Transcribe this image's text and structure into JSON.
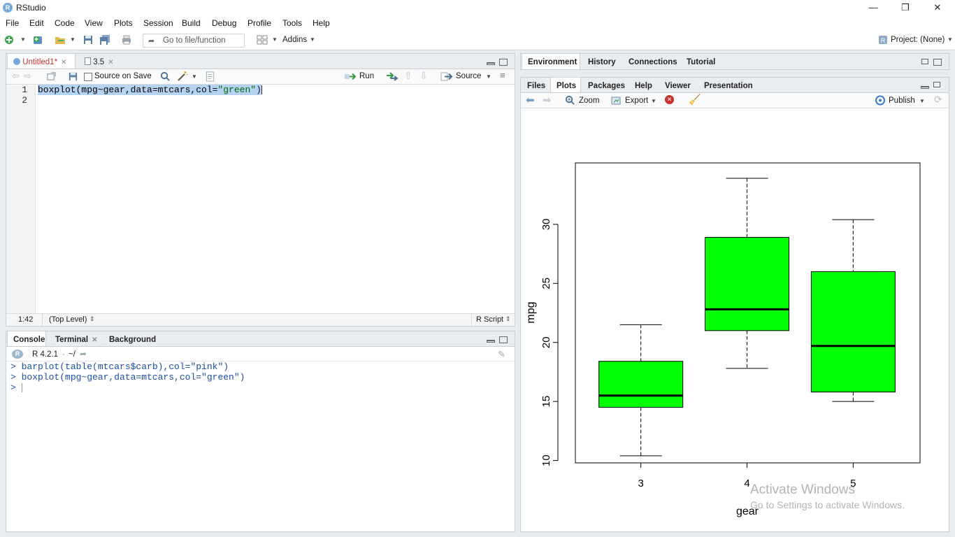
{
  "window": {
    "title": "RStudio",
    "controls": [
      "—",
      "❐",
      "✕"
    ]
  },
  "menu": [
    "File",
    "Edit",
    "Code",
    "View",
    "Plots",
    "Session",
    "Build",
    "Debug",
    "Profile",
    "Tools",
    "Help"
  ],
  "toolbar": {
    "goto_placeholder": "Go to file/function",
    "addins_label": "Addins",
    "project_label": "Project: (None)"
  },
  "editor": {
    "tabs": [
      {
        "label": "Untitled1*",
        "active": true
      },
      {
        "label": "3.5",
        "active": false
      }
    ],
    "source_on_save": "Source on Save",
    "run_label": "Run",
    "source_label": "Source",
    "lines": [
      {
        "n": "1",
        "code_fn": "boxplot(mpg~gear,data=mtcars,col=",
        "code_str": "\"green\"",
        "code_end": ")"
      },
      {
        "n": "2",
        "code_fn": "",
        "code_str": "",
        "code_end": ""
      }
    ],
    "status_position": "1:42",
    "status_scope": "(Top Level)",
    "status_type": "R Script"
  },
  "console": {
    "tabs": [
      {
        "label": "Console",
        "active": true
      },
      {
        "label": "Terminal",
        "active": false
      },
      {
        "label": "Background Jobs",
        "active": false
      }
    ],
    "r_version": "R 4.2.1",
    "path": "~/",
    "lines": [
      "> barplot(table(mtcars$carb),col=\"pink\")",
      "> boxplot(mpg~gear,data=mtcars,col=\"green\")",
      "> "
    ]
  },
  "env_pane": {
    "tabs": [
      "Environment",
      "History",
      "Connections",
      "Tutorial"
    ]
  },
  "files_pane": {
    "tabs": [
      {
        "label": "Files",
        "active": false
      },
      {
        "label": "Plots",
        "active": true
      },
      {
        "label": "Packages",
        "active": false
      },
      {
        "label": "Help",
        "active": false
      },
      {
        "label": "Viewer",
        "active": false
      },
      {
        "label": "Presentation",
        "active": false
      }
    ],
    "zoom_label": "Zoom",
    "export_label": "Export",
    "publish_label": "Publish"
  },
  "chart_data": {
    "type": "boxplot",
    "categories": [
      "3",
      "4",
      "5"
    ],
    "fill_color": "#00ff00",
    "xlabel": "gear",
    "ylabel": "mpg",
    "yticks": [
      "10",
      "15",
      "20",
      "25",
      "30"
    ],
    "ylim": [
      9.8,
      35.2
    ],
    "boxes": [
      {
        "category": "3",
        "min": 10.4,
        "q1": 14.5,
        "median": 15.5,
        "q3": 18.4,
        "max": 21.5
      },
      {
        "category": "4",
        "min": 17.8,
        "q1": 21.0,
        "median": 22.8,
        "q3": 28.9,
        "max": 33.9
      },
      {
        "category": "5",
        "min": 15.0,
        "q1": 15.8,
        "median": 19.7,
        "q3": 26.0,
        "max": 30.4
      }
    ]
  },
  "watermark": {
    "line1": "Activate Windows",
    "line2": "Go to Settings to activate Windows."
  }
}
